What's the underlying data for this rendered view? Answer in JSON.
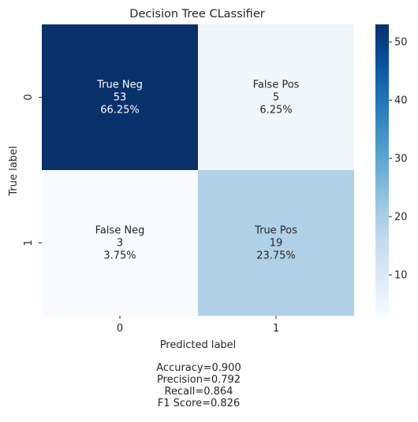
{
  "chart_data": {
    "type": "heatmap",
    "title": "Decision Tree CLassifier",
    "xlabel": "Predicted label",
    "ylabel": "True label",
    "x_categories": [
      "0",
      "1"
    ],
    "y_categories": [
      "0",
      "1"
    ],
    "values": [
      [
        53,
        5
      ],
      [
        3,
        19
      ]
    ],
    "cell_labels": [
      [
        [
          "True Neg",
          "53",
          "66.25%"
        ],
        [
          "False Pos",
          "5",
          "6.25%"
        ]
      ],
      [
        [
          "False Neg",
          "3",
          "3.75%"
        ],
        [
          "True Pos",
          "19",
          "23.75%"
        ]
      ]
    ],
    "colorbar": {
      "cmap": "Blues",
      "range": [
        3,
        53
      ],
      "ticks": [
        10,
        20,
        30,
        40,
        50
      ]
    }
  },
  "stats": [
    "Accuracy=0.900",
    "Precision=0.792",
    "Recall=0.864",
    "F1 Score=0.826"
  ]
}
